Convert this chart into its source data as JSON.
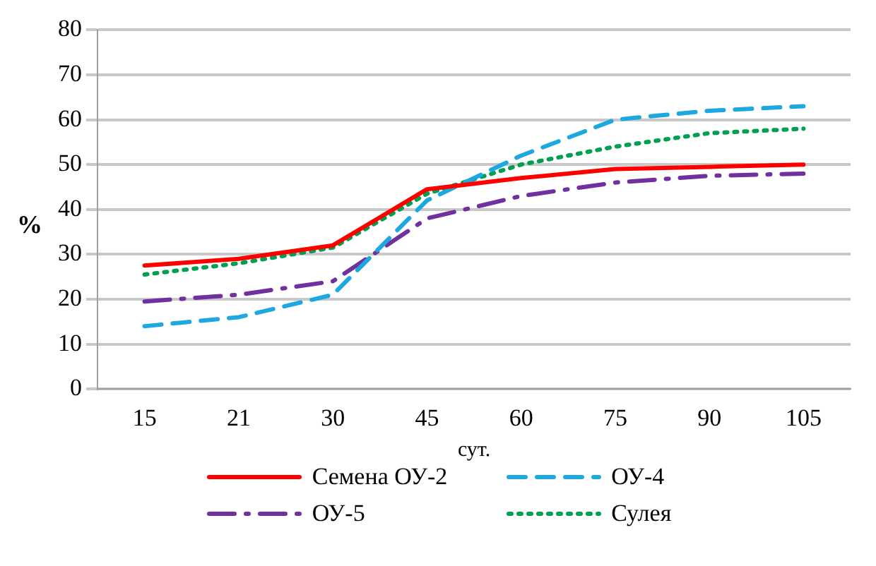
{
  "chart_data": {
    "type": "line",
    "xlabel": "сут.",
    "ylabel": "%",
    "categories": [
      "15",
      "21",
      "30",
      "45",
      "60",
      "75",
      "90",
      "105"
    ],
    "series": [
      {
        "name": "Семена ОУ-2",
        "color": "#ff0000",
        "line_style": "solid",
        "values": [
          27.5,
          29,
          32,
          44.5,
          47,
          49,
          49.5,
          50
        ]
      },
      {
        "name": "ОУ-4",
        "color": "#1ea8e0",
        "line_style": "dashed",
        "values": [
          14,
          16,
          21,
          42,
          52,
          60,
          62,
          63
        ]
      },
      {
        "name": "ОУ-5",
        "color": "#7030a0",
        "line_style": "dashdot",
        "values": [
          19.5,
          21,
          24,
          38,
          43,
          46,
          47.5,
          48
        ]
      },
      {
        "name": "Сулея",
        "color": "#00a050",
        "line_style": "dotted",
        "values": [
          25.5,
          28,
          31.5,
          43.5,
          50,
          54,
          57,
          58
        ]
      }
    ],
    "ylim": [
      0,
      80
    ],
    "yticks": [
      0,
      10,
      20,
      30,
      40,
      50,
      60,
      70,
      80
    ],
    "grid": "y",
    "legend": "bottom",
    "marker": "none"
  }
}
